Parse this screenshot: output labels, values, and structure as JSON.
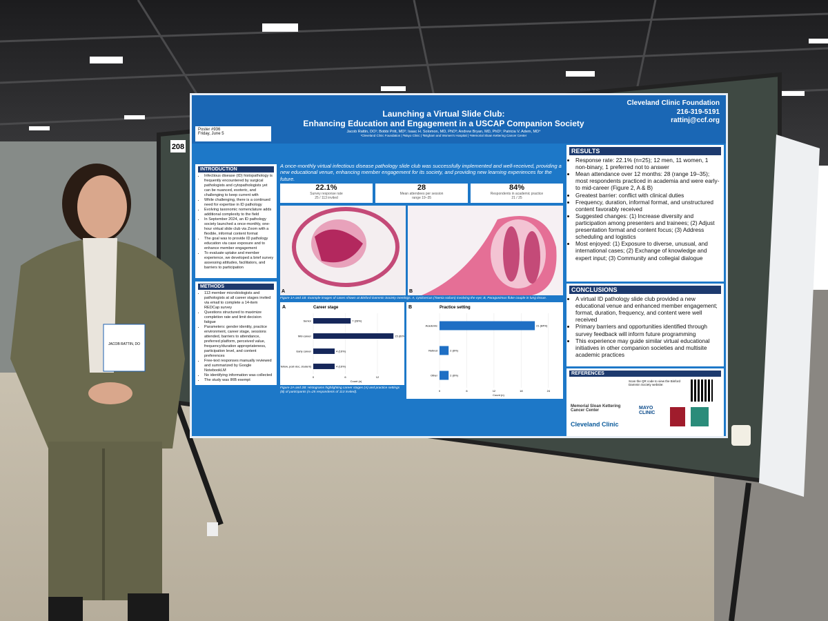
{
  "board_number": "208",
  "badge": "JACOB RATTIN, DO",
  "poster": {
    "poster_number": "Poster #936",
    "date": "Friday, June 5",
    "title": [
      "Launching a Virtual Slide Club:",
      "Enhancing Education and Engagement in a USCAP Companion Society"
    ],
    "authors": "Jacob Rattin, DO¹; Bobbi Pritt, MD²; Isaac H. Solomon, MD, PhD³; Andrew Bryan, MD, PhD¹; Patricia V. Adem, MD⁴",
    "affiliations": "¹Cleveland Clinic Foundation | ²Mayo Clinic | ³Brigham and Women's Hospital | ⁴Memorial Sloan Kettering Cancer Center",
    "contact": [
      "Cleveland Clinic Foundation",
      "216-319-5191",
      "rattinj@ccf.org"
    ],
    "summary": "A once-monthly virtual infectious disease pathology slide club was successfully implemented and well-received, providing a new educational venue, enhancing member engagement for its society, and providing new learning experiences for the future.",
    "stats": [
      {
        "value": "22.1%",
        "label": "Survey response rate",
        "sub": "25 / 113 invited"
      },
      {
        "value": "28",
        "label": "Mean attendees per session",
        "sub": "range 19–35"
      },
      {
        "value": "84%",
        "label": "Respondents in academic practice",
        "sub": "21 / 25"
      }
    ],
    "introduction": {
      "heading": "INTRODUCTION",
      "items": [
        "Infectious disease (ID) histopathology is frequently encountered by surgical pathologists and cytopathologists yet can be nuanced, esoteric, and challenging to keep current with",
        "While challenging, there is a continued need for expertise in ID pathology",
        "Evolving taxonomic nomenclature adds additional complexity to the field",
        "In September 2024, an ID pathology society launched a once-monthly, one-hour virtual slide club via Zoom with a flexible, informal content format",
        "The goal was to provide ID pathology education via case exposure and to enhance member engagement",
        "To evaluate uptake and member experience, we developed a brief survey assessing attitudes, facilitators, and barriers to participation"
      ]
    },
    "methods": {
      "heading": "METHODS",
      "items": [
        "113 member microbiologists and pathologists at all career stages invited via email to complete a 14-item REDCap survey",
        "Questions structured to maximize completion rate and limit decision fatigue",
        "Parameters: gender identity, practice environment, career stage, sessions attended, barriers to attendance, preferred platform, perceived value, frequency/duration appropriateness, participation level, and content preferences",
        "Free-text responses manually reviewed and summarized by Google NotebookLM",
        "No identifying information was collected",
        "The study was IRB exempt"
      ]
    },
    "results": {
      "heading": "RESULTS",
      "items": [
        "Response rate: 22.1% (n=25); 12 men, 11 women, 1 non-binary, 1 preferred not to answer",
        "Mean attendance over 12 months: 28 (range 19–35); most respondents practiced in academia and were early- to mid-career (Figure 2, A & B)",
        "Greatest barrier: conflict with clinical duties",
        "Frequency, duration, informal format, and unstructured content favorably received",
        "Suggested changes: (1) Increase diversity and participation among presenters and trainees; (2) Adjust presentation format and content focus; (3) Address scheduling and logistics",
        "Most enjoyed: (1) Exposure to diverse, unusual, and international cases; (2) Exchange of knowledge and expert input; (3) Community and collegial dialogue"
      ]
    },
    "conclusions": {
      "heading": "CONCLUSIONS",
      "items": [
        "A virtual ID pathology slide club provided a new educational venue and enhanced member engagement; format, duration, frequency, and content were well received",
        "Primary barriers and opportunities identified through survey feedback will inform future programming",
        "This experience may guide similar virtual educational initiatives in other companion societies and multisite academic practices"
      ]
    },
    "references": {
      "heading": "REFERENCES",
      "qr_text": "Scan the QR code to view the Binford Dammin Society website:"
    },
    "logos": [
      "Memorial Sloan Kettering Cancer Center",
      "MAYO CLINIC",
      "Cleveland Clinic"
    ],
    "image_labels": [
      "A",
      "B"
    ],
    "figure1_caption": "Figure 1A and 1B: Example images of cases shown at Binford Dammin Society meetings. A, cysticercus (Taenia solium) involving the eye; B, Paragonimus fluke couple in lung tissue.",
    "figure2_caption": "Figure 2A and 2B: Histograms highlighting career stages (A) and practice settings (B) of participants (n=25 respondents of 113 invited).",
    "charts": [
      {
        "type": "bar",
        "label": "A",
        "title": "Career stage",
        "categories": [
          "Senior",
          "Mid-career",
          "Early career",
          "Trainee (resident, fellow, post-doc, student)"
        ],
        "values": [
          7,
          15,
          4,
          4
        ],
        "value_labels": [
          "7 (28%)",
          "15 (60%)",
          "4 (16%)",
          "4 (16%)"
        ],
        "xlim": [
          0,
          16
        ],
        "xticks": [
          0,
          6,
          12
        ],
        "xlabel": "Count (n)",
        "color": "#16275a"
      },
      {
        "type": "bar",
        "label": "B",
        "title": "Practice setting",
        "categories": [
          "Academic",
          "Retired",
          "Other"
        ],
        "values": [
          21,
          2,
          2
        ],
        "value_labels": [
          "21 (84%)",
          "2 (8%)",
          "2 (8%)"
        ],
        "xlim": [
          0,
          26
        ],
        "xticks": [
          0,
          6,
          12,
          18,
          24
        ],
        "xlabel": "Count (n)",
        "color": "#1f6fc4"
      }
    ]
  }
}
